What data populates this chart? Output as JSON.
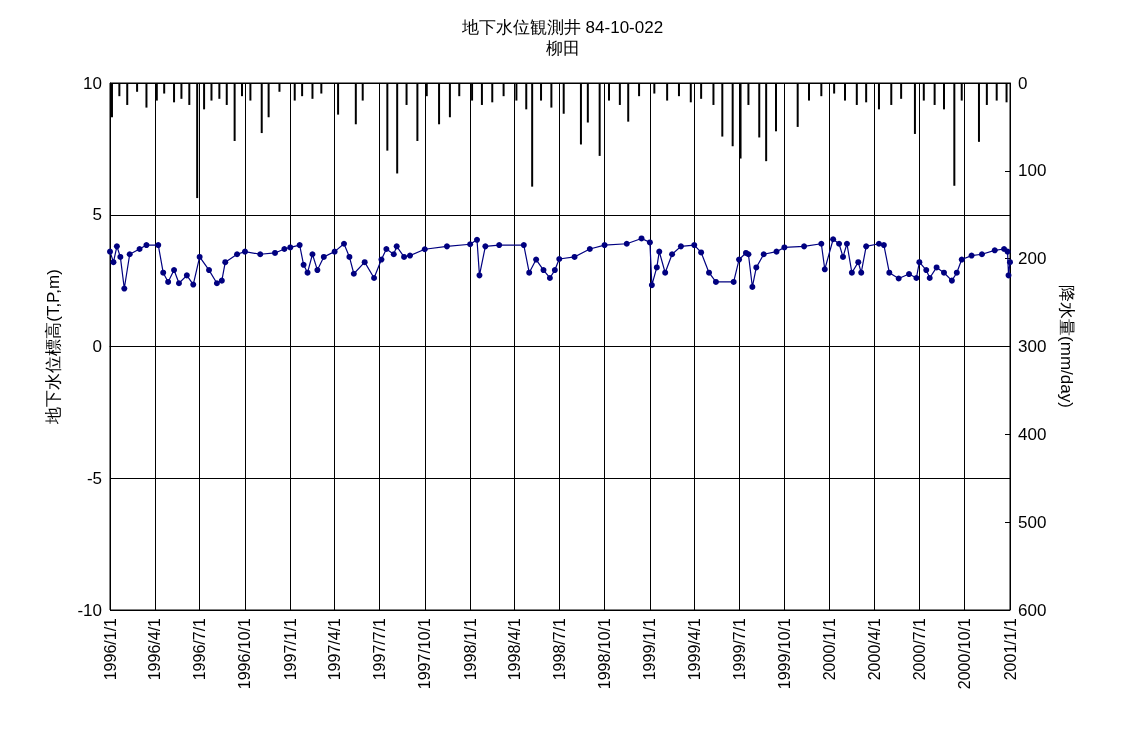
{
  "chart_data": {
    "type": "line",
    "title": "地下水位観測井 84-10-022",
    "subtitle": "柳田",
    "ylabel": "地下水位標高(T,P,m)",
    "y2label": "降水量(mm/day)",
    "xlim": [
      "1996-01-01",
      "2001-01-01"
    ],
    "xticks": [
      {
        "value": "1996-01-01",
        "label": "1996/1/1"
      },
      {
        "value": "1996-04-01",
        "label": "1996/4/1"
      },
      {
        "value": "1996-07-01",
        "label": "1996/7/1"
      },
      {
        "value": "1996-10-01",
        "label": "1996/10/1"
      },
      {
        "value": "1997-01-01",
        "label": "1997/1/1"
      },
      {
        "value": "1997-04-01",
        "label": "1997/4/1"
      },
      {
        "value": "1997-07-01",
        "label": "1997/7/1"
      },
      {
        "value": "1997-10-01",
        "label": "1997/10/1"
      },
      {
        "value": "1998-01-01",
        "label": "1998/1/1"
      },
      {
        "value": "1998-04-01",
        "label": "1998/4/1"
      },
      {
        "value": "1998-07-01",
        "label": "1998/7/1"
      },
      {
        "value": "1998-10-01",
        "label": "1998/10/1"
      },
      {
        "value": "1999-01-01",
        "label": "1999/1/1"
      },
      {
        "value": "1999-04-01",
        "label": "1999/4/1"
      },
      {
        "value": "1999-07-01",
        "label": "1999/7/1"
      },
      {
        "value": "1999-10-01",
        "label": "1999/10/1"
      },
      {
        "value": "2000-01-01",
        "label": "2000/1/1"
      },
      {
        "value": "2000-04-01",
        "label": "2000/4/1"
      },
      {
        "value": "2000-07-01",
        "label": "2000/7/1"
      },
      {
        "value": "2000-10-01",
        "label": "2000/10/1"
      },
      {
        "value": "2001-01-01",
        "label": "2001/1/1"
      }
    ],
    "ylim": [
      -10,
      10
    ],
    "yticks": [
      -10,
      -5,
      0,
      5,
      10
    ],
    "y2lim": [
      600,
      0
    ],
    "y2ticks": [
      0,
      100,
      200,
      300,
      400,
      500,
      600
    ],
    "grid": true,
    "marker": "circle",
    "line_style": "solid",
    "series": [
      {
        "type": "bar",
        "axis": "y2",
        "color": "#000000",
        "x": [
          "1996-01-05",
          "1996-01-20",
          "1996-02-05",
          "1996-02-25",
          "1996-03-15",
          "1996-04-05",
          "1996-04-20",
          "1996-05-10",
          "1996-05-25",
          "1996-06-10",
          "1996-06-26",
          "1996-07-10",
          "1996-07-25",
          "1996-08-10",
          "1996-08-25",
          "1996-09-10",
          "1996-09-25",
          "1996-10-12",
          "1996-11-04",
          "1996-11-18",
          "1996-12-10",
          "1997-01-10",
          "1997-01-25",
          "1997-02-15",
          "1997-03-05",
          "1997-04-08",
          "1997-05-14",
          "1997-05-28",
          "1997-07-17",
          "1997-08-06",
          "1997-08-25",
          "1997-09-16",
          "1997-10-05",
          "1997-10-30",
          "1997-11-21",
          "1997-12-10",
          "1998-01-05",
          "1998-01-25",
          "1998-02-15",
          "1998-03-10",
          "1998-04-05",
          "1998-04-25",
          "1998-05-07",
          "1998-05-25",
          "1998-06-15",
          "1998-07-10",
          "1998-08-14",
          "1998-08-28",
          "1998-09-21",
          "1998-10-10",
          "1998-11-01",
          "1998-11-18",
          "1998-12-10",
          "1999-01-10",
          "1999-02-05",
          "1999-03-01",
          "1999-03-25",
          "1999-04-15",
          "1999-05-10",
          "1999-05-28",
          "1999-06-18",
          "1999-07-04",
          "1999-07-20",
          "1999-08-11",
          "1999-08-25",
          "1999-09-14",
          "1999-10-28",
          "1999-11-20",
          "1999-12-15",
          "2000-01-10",
          "2000-02-01",
          "2000-02-25",
          "2000-03-15",
          "2000-04-10",
          "2000-05-05",
          "2000-05-25",
          "2000-06-22",
          "2000-07-10",
          "2000-08-01",
          "2000-08-20",
          "2000-09-10",
          "2000-09-25",
          "2000-10-30",
          "2000-11-15",
          "2000-12-05",
          "2000-12-25"
        ],
        "values": [
          39,
          15,
          25,
          10,
          28,
          20,
          12,
          22,
          18,
          25,
          131,
          30,
          20,
          18,
          25,
          66,
          15,
          20,
          57,
          39,
          10,
          20,
          15,
          18,
          12,
          36,
          47,
          20,
          77,
          103,
          25,
          66,
          15,
          47,
          39,
          15,
          20,
          25,
          22,
          15,
          20,
          30,
          118,
          20,
          28,
          35,
          70,
          45,
          83,
          20,
          25,
          44,
          15,
          12,
          20,
          15,
          22,
          18,
          25,
          61,
          72,
          86,
          25,
          62,
          89,
          55,
          50,
          20,
          15,
          12,
          20,
          25,
          22,
          30,
          25,
          18,
          58,
          20,
          25,
          30,
          117,
          20,
          67,
          25,
          20,
          22
        ]
      },
      {
        "color": "#000080",
        "x": [
          "1996-01-01",
          "1996-01-08",
          "1996-01-15",
          "1996-01-22",
          "1996-01-30",
          "1996-02-10",
          "1996-03-01",
          "1996-03-15",
          "1996-04-08",
          "1996-04-18",
          "1996-04-28",
          "1996-05-10",
          "1996-05-20",
          "1996-06-05",
          "1996-06-18",
          "1996-07-01",
          "1996-07-20",
          "1996-08-05",
          "1996-08-15",
          "1996-08-22",
          "1996-09-15",
          "1996-10-01",
          "1996-11-01",
          "1996-12-01",
          "1996-12-20",
          "1997-01-01",
          "1997-01-20",
          "1997-01-28",
          "1997-02-05",
          "1997-02-15",
          "1997-02-25",
          "1997-03-10",
          "1997-04-01",
          "1997-04-20",
          "1997-05-01",
          "1997-05-10",
          "1997-06-01",
          "1997-06-20",
          "1997-07-05",
          "1997-07-15",
          "1997-07-30",
          "1997-08-05",
          "1997-08-20",
          "1997-09-01",
          "1997-10-01",
          "1997-11-15",
          "1998-01-01",
          "1998-01-15",
          "1998-01-20",
          "1998-02-01",
          "1998-03-01",
          "1998-04-20",
          "1998-05-01",
          "1998-05-15",
          "1998-05-30",
          "1998-06-12",
          "1998-06-22",
          "1998-07-01",
          "1998-08-01",
          "1998-09-01",
          "1998-10-01",
          "1998-11-15",
          "1998-12-15",
          "1999-01-01",
          "1999-01-05",
          "1999-01-15",
          "1999-01-20",
          "1999-02-01",
          "1999-02-15",
          "1999-03-05",
          "1999-04-01",
          "1999-04-15",
          "1999-05-01",
          "1999-05-15",
          "1999-06-20",
          "1999-07-01",
          "1999-07-15",
          "1999-07-20",
          "1999-07-28",
          "1999-08-05",
          "1999-08-20",
          "1999-09-15",
          "1999-10-01",
          "1999-11-10",
          "1999-12-15",
          "1999-12-22",
          "2000-01-08",
          "2000-01-20",
          "2000-01-28",
          "2000-02-05",
          "2000-02-15",
          "2000-02-28",
          "2000-03-05",
          "2000-03-15",
          "2000-04-10",
          "2000-04-20",
          "2000-05-01",
          "2000-05-20",
          "2000-06-10",
          "2000-06-25",
          "2000-07-01",
          "2000-07-15",
          "2000-07-22",
          "2000-08-05",
          "2000-08-20",
          "2000-09-05",
          "2000-09-15",
          "2000-09-25",
          "2000-10-15",
          "2000-11-05",
          "2000-12-01",
          "2000-12-20",
          "2000-12-27",
          "2000-12-29",
          "2001-01-01"
        ],
        "values": [
          3.6,
          3.2,
          3.8,
          3.4,
          2.2,
          3.5,
          3.7,
          3.85,
          3.85,
          2.8,
          2.45,
          2.9,
          2.4,
          2.7,
          2.35,
          3.4,
          2.9,
          2.4,
          2.5,
          3.2,
          3.5,
          3.6,
          3.5,
          3.55,
          3.7,
          3.76,
          3.85,
          3.1,
          2.8,
          3.5,
          2.9,
          3.4,
          3.6,
          3.9,
          3.4,
          2.76,
          3.2,
          2.6,
          3.3,
          3.7,
          3.5,
          3.8,
          3.4,
          3.45,
          3.69,
          3.8,
          3.88,
          4.05,
          2.7,
          3.8,
          3.85,
          3.85,
          2.8,
          3.3,
          2.9,
          2.6,
          2.9,
          3.32,
          3.4,
          3.7,
          3.85,
          3.9,
          4.1,
          3.95,
          2.33,
          3.0,
          3.6,
          2.8,
          3.5,
          3.8,
          3.85,
          3.57,
          2.8,
          2.45,
          2.45,
          3.3,
          3.55,
          3.5,
          2.26,
          3.0,
          3.5,
          3.6,
          3.76,
          3.8,
          3.9,
          2.93,
          4.07,
          3.9,
          3.4,
          3.9,
          2.8,
          3.2,
          2.8,
          3.8,
          3.9,
          3.85,
          2.8,
          2.58,
          2.75,
          2.6,
          3.2,
          2.9,
          2.6,
          3.0,
          2.8,
          2.5,
          2.8,
          3.3,
          3.45,
          3.5,
          3.65,
          3.7,
          3.6,
          2.7,
          3.2
        ]
      }
    ]
  }
}
